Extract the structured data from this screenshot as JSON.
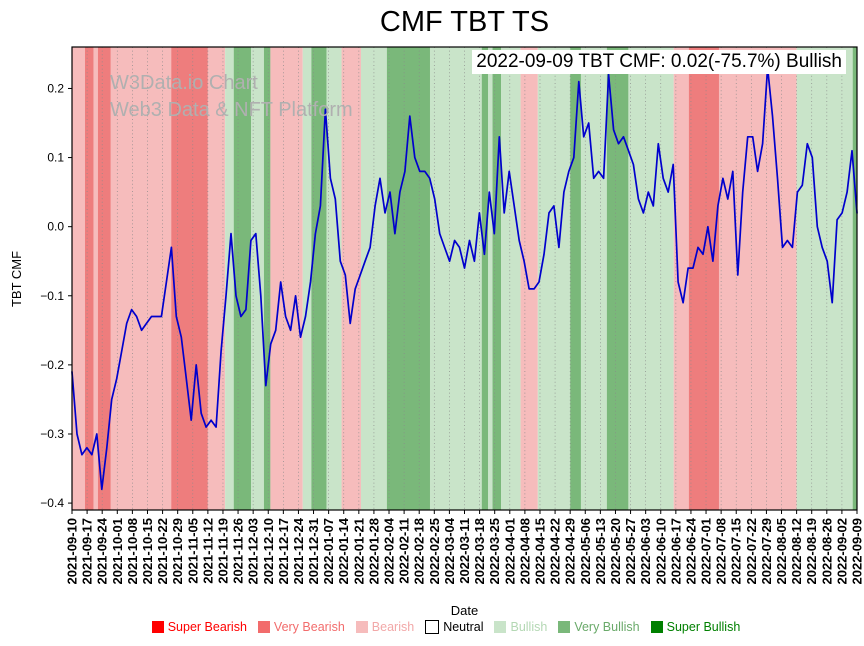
{
  "chart_data": {
    "type": "line",
    "title": "CMF TBT TS",
    "annotation": "2022-09-09 TBT CMF: 0.02(-75.7%) Bullish",
    "watermark": {
      "line1": "W3Data.io Chart",
      "line2": "Web3 Data & NFT Platform"
    },
    "xlabel": "Date",
    "ylabel": "TBT CMF",
    "ylim": [
      -0.41,
      0.26
    ],
    "y_ticks": [
      0.2,
      0.1,
      0.0,
      -0.1,
      -0.2,
      -0.3,
      -0.4
    ],
    "x_start": "2021-09-10",
    "x_end": "2022-09-09",
    "x_range_days": 364,
    "grid": "vertical-dotted-weekly",
    "legend_position": "bottom-center",
    "line_color": "#0000cd",
    "x_tick_labels": [
      "2021-09-10",
      "2021-09-17",
      "2021-09-24",
      "2021-10-01",
      "2021-10-08",
      "2021-10-15",
      "2021-10-22",
      "2021-10-29",
      "2021-11-05",
      "2021-11-12",
      "2021-11-19",
      "2021-11-26",
      "2021-12-03",
      "2021-12-10",
      "2021-12-17",
      "2021-12-24",
      "2021-12-31",
      "2022-01-07",
      "2022-01-14",
      "2022-01-21",
      "2022-01-28",
      "2022-02-04",
      "2022-02-11",
      "2022-02-18",
      "2022-02-25",
      "2022-03-04",
      "2022-03-11",
      "2022-03-18",
      "2022-03-25",
      "2022-04-01",
      "2022-04-08",
      "2022-04-15",
      "2022-04-22",
      "2022-04-29",
      "2022-05-06",
      "2022-05-13",
      "2022-05-20",
      "2022-05-27",
      "2022-06-03",
      "2022-06-10",
      "2022-06-17",
      "2022-06-24",
      "2022-07-01",
      "2022-07-08",
      "2022-07-15",
      "2022-07-22",
      "2022-07-29",
      "2022-08-05",
      "2022-08-12",
      "2022-08-19",
      "2022-08-26",
      "2022-09-02",
      "2022-09-09"
    ],
    "series": [
      {
        "name": "TBT CMF",
        "values": [
          -0.21,
          -0.3,
          -0.33,
          -0.32,
          -0.33,
          -0.3,
          -0.38,
          -0.32,
          -0.25,
          -0.22,
          -0.18,
          -0.14,
          -0.12,
          -0.13,
          -0.15,
          -0.14,
          -0.13,
          -0.13,
          -0.13,
          -0.08,
          -0.03,
          -0.13,
          -0.16,
          -0.22,
          -0.28,
          -0.2,
          -0.27,
          -0.29,
          -0.28,
          -0.29,
          -0.18,
          -0.1,
          -0.01,
          -0.1,
          -0.13,
          -0.12,
          -0.02,
          -0.01,
          -0.1,
          -0.23,
          -0.17,
          -0.15,
          -0.08,
          -0.13,
          -0.15,
          -0.1,
          -0.16,
          -0.13,
          -0.08,
          -0.01,
          0.03,
          0.17,
          0.07,
          0.04,
          -0.05,
          -0.07,
          -0.14,
          -0.09,
          -0.07,
          -0.05,
          -0.03,
          0.03,
          0.07,
          0.02,
          0.05,
          -0.01,
          0.05,
          0.08,
          0.16,
          0.1,
          0.08,
          0.08,
          0.07,
          0.04,
          -0.01,
          -0.03,
          -0.05,
          -0.02,
          -0.03,
          -0.06,
          -0.02,
          -0.05,
          0.02,
          -0.04,
          0.05,
          -0.01,
          0.13,
          0.02,
          0.08,
          0.03,
          -0.02,
          -0.05,
          -0.09,
          -0.09,
          -0.08,
          -0.04,
          0.02,
          0.03,
          -0.03,
          0.05,
          0.08,
          0.1,
          0.21,
          0.13,
          0.15,
          0.07,
          0.08,
          0.07,
          0.22,
          0.14,
          0.12,
          0.13,
          0.11,
          0.09,
          0.04,
          0.02,
          0.05,
          0.03,
          0.12,
          0.07,
          0.05,
          0.09,
          -0.08,
          -0.11,
          -0.06,
          -0.06,
          -0.03,
          -0.04,
          0.0,
          -0.05,
          0.03,
          0.07,
          0.04,
          0.08,
          -0.07,
          0.05,
          0.13,
          0.13,
          0.08,
          0.12,
          0.23,
          0.16,
          0.07,
          -0.03,
          -0.02,
          -0.03,
          0.05,
          0.06,
          0.12,
          0.1,
          0.0,
          -0.03,
          -0.05,
          -0.11,
          0.01,
          0.02,
          0.05,
          0.11,
          0.02
        ]
      }
    ],
    "band_colors": {
      "super_bearish": "#ff0000",
      "very_bearish": "#ee7d7d",
      "bearish": "#f6bcbc",
      "neutral": "#ffffff",
      "bullish": "#c9e4c9",
      "very_bullish": "#7ab87a",
      "super_bullish": "#008000"
    },
    "background_bands": [
      {
        "start_day": 0,
        "end_day": 6,
        "class": "bearish"
      },
      {
        "start_day": 6,
        "end_day": 10,
        "class": "very_bearish"
      },
      {
        "start_day": 10,
        "end_day": 12,
        "class": "bearish"
      },
      {
        "start_day": 12,
        "end_day": 18,
        "class": "very_bearish"
      },
      {
        "start_day": 18,
        "end_day": 46,
        "class": "bearish"
      },
      {
        "start_day": 46,
        "end_day": 63,
        "class": "very_bearish"
      },
      {
        "start_day": 63,
        "end_day": 71,
        "class": "bearish"
      },
      {
        "start_day": 71,
        "end_day": 75,
        "class": "bullish"
      },
      {
        "start_day": 75,
        "end_day": 83,
        "class": "very_bullish"
      },
      {
        "start_day": 83,
        "end_day": 89,
        "class": "bullish"
      },
      {
        "start_day": 89,
        "end_day": 92,
        "class": "very_bullish"
      },
      {
        "start_day": 92,
        "end_day": 107,
        "class": "bearish"
      },
      {
        "start_day": 107,
        "end_day": 111,
        "class": "bullish"
      },
      {
        "start_day": 111,
        "end_day": 118,
        "class": "very_bullish"
      },
      {
        "start_day": 118,
        "end_day": 125,
        "class": "bullish"
      },
      {
        "start_day": 125,
        "end_day": 134,
        "class": "bearish"
      },
      {
        "start_day": 134,
        "end_day": 146,
        "class": "bullish"
      },
      {
        "start_day": 146,
        "end_day": 166,
        "class": "very_bullish"
      },
      {
        "start_day": 166,
        "end_day": 190,
        "class": "bullish"
      },
      {
        "start_day": 190,
        "end_day": 193,
        "class": "very_bullish"
      },
      {
        "start_day": 193,
        "end_day": 195,
        "class": "bullish"
      },
      {
        "start_day": 195,
        "end_day": 199,
        "class": "very_bullish"
      },
      {
        "start_day": 199,
        "end_day": 208,
        "class": "bullish"
      },
      {
        "start_day": 208,
        "end_day": 216,
        "class": "bearish"
      },
      {
        "start_day": 216,
        "end_day": 231,
        "class": "bullish"
      },
      {
        "start_day": 231,
        "end_day": 236,
        "class": "very_bullish"
      },
      {
        "start_day": 236,
        "end_day": 248,
        "class": "bullish"
      },
      {
        "start_day": 248,
        "end_day": 258,
        "class": "very_bullish"
      },
      {
        "start_day": 258,
        "end_day": 279,
        "class": "bullish"
      },
      {
        "start_day": 279,
        "end_day": 286,
        "class": "bearish"
      },
      {
        "start_day": 286,
        "end_day": 300,
        "class": "very_bearish"
      },
      {
        "start_day": 300,
        "end_day": 336,
        "class": "bearish"
      },
      {
        "start_day": 336,
        "end_day": 362,
        "class": "bullish"
      },
      {
        "start_day": 362,
        "end_day": 364,
        "class": "very_bullish"
      }
    ],
    "legend": [
      {
        "label": "Super Bearish",
        "color": "#ff0000",
        "text_color": "#ff0000",
        "border": false
      },
      {
        "label": "Very Bearish",
        "color": "#f26c6c",
        "text_color": "#f26c6c",
        "border": false
      },
      {
        "label": "Bearish",
        "color": "#f6bcbc",
        "text_color": "#f2a8a8",
        "border": false
      },
      {
        "label": "Neutral",
        "color": "#ffffff",
        "text_color": "#000000",
        "border": true
      },
      {
        "label": "Bullish",
        "color": "#c9e4c9",
        "text_color": "#b4d8b4",
        "border": false
      },
      {
        "label": "Very Bullish",
        "color": "#7ab87a",
        "text_color": "#6aaa6a",
        "border": false
      },
      {
        "label": "Super Bullish",
        "color": "#008000",
        "text_color": "#008000",
        "border": false
      }
    ]
  }
}
